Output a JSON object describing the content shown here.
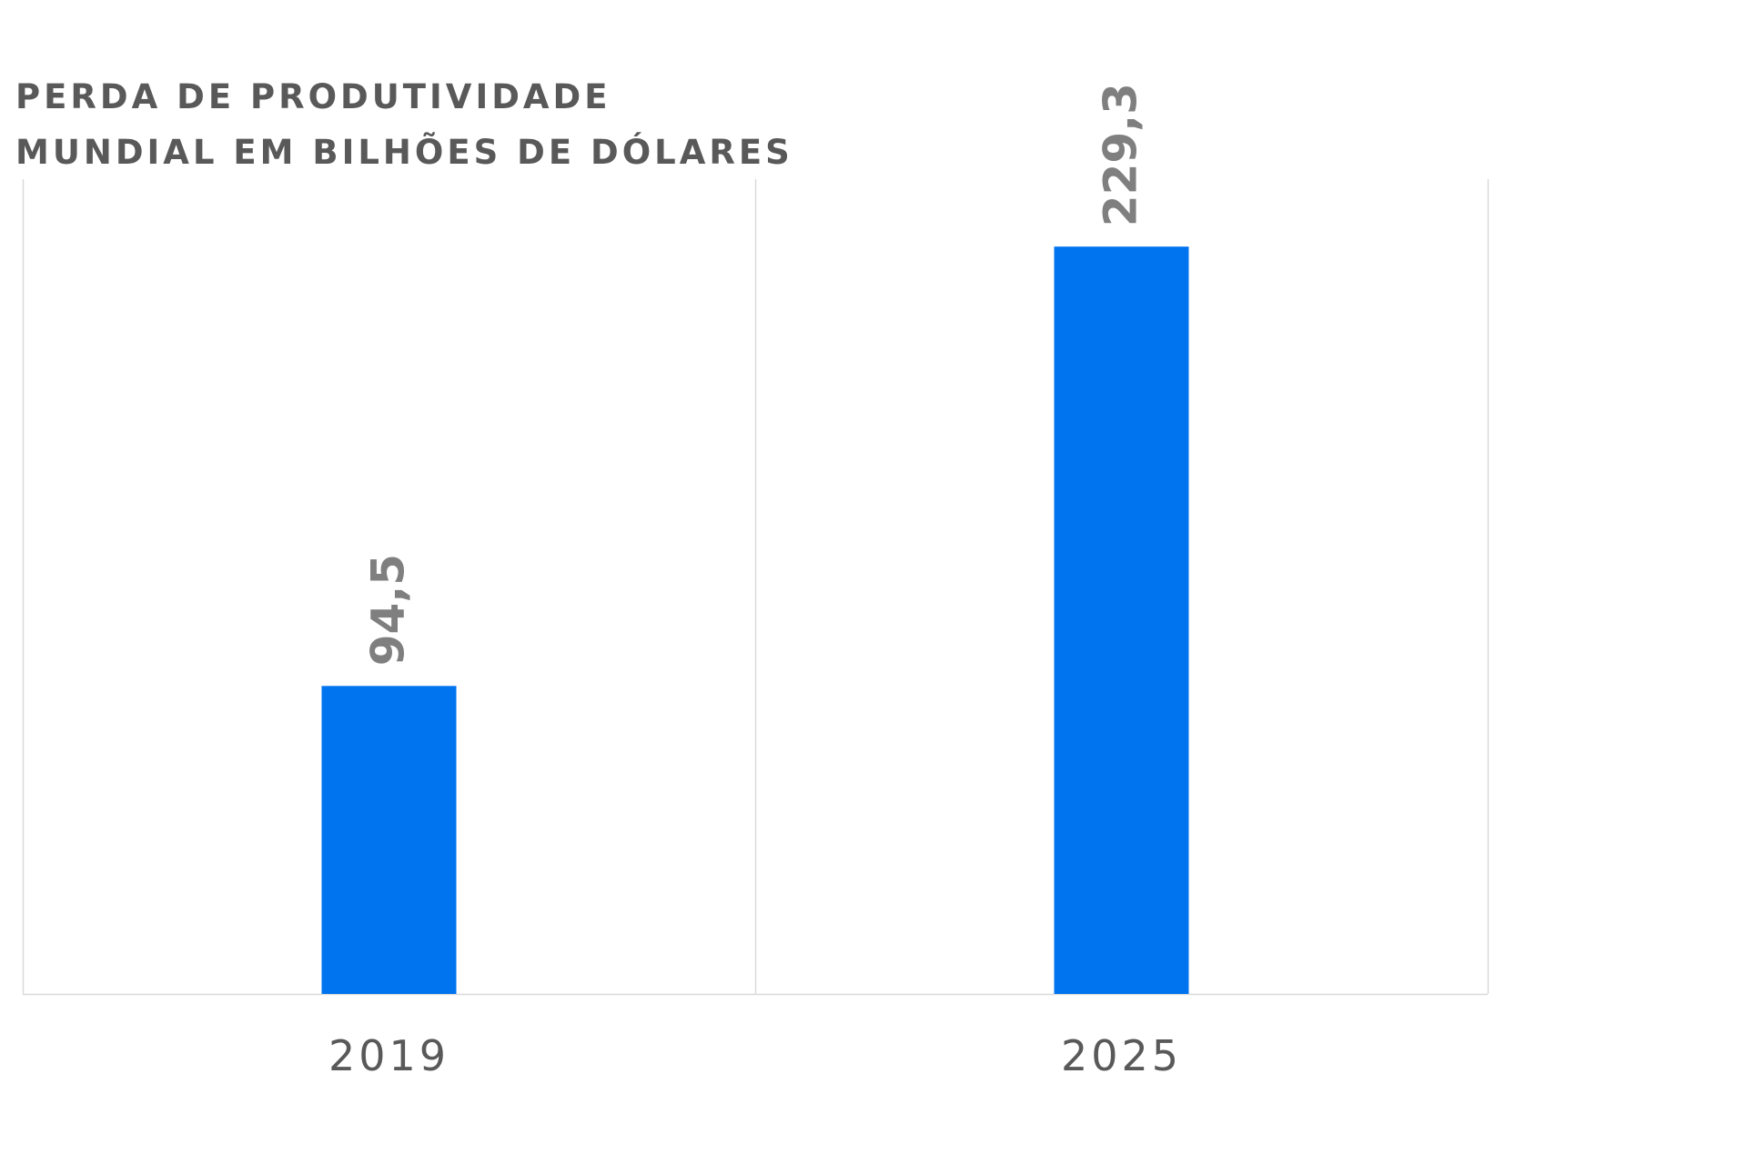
{
  "chart_data": {
    "type": "bar",
    "title_lines": [
      "PERDA DE PRODUTIVIDADE",
      "MUNDIAL EM BILHÕES DE DÓLARES"
    ],
    "categories": [
      "2019",
      "2025"
    ],
    "values": [
      94.5,
      229.3
    ],
    "value_labels": [
      "94,5",
      "229,3"
    ],
    "ylim": [
      0,
      250
    ],
    "grid": "vertical category separators",
    "legend": "none",
    "colors": {
      "bar": "#0073EF",
      "value_label": "#7F7F7F",
      "tick_label": "#595959",
      "axis": "#D9D9D9",
      "title": "#595959"
    }
  }
}
